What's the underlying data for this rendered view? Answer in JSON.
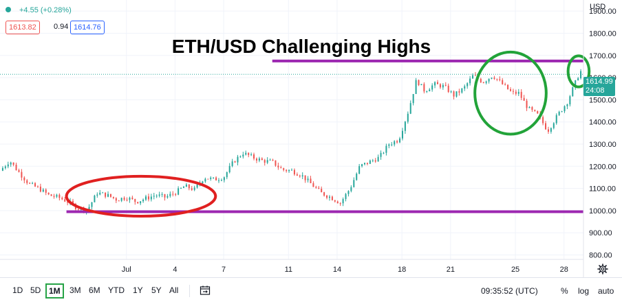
{
  "chart_data": {
    "type": "candlestick",
    "title": "ETH/USD Challenging Highs",
    "currency_label": "USD",
    "ylim": [
      780,
      1950
    ],
    "y_ticks": [
      "1900.00",
      "1800.00",
      "1700.00",
      "1600.00",
      "1500.00",
      "1400.00",
      "1300.00",
      "1200.00",
      "1100.00",
      "1000.00",
      "900.00",
      "800.00"
    ],
    "y_tick_values": [
      1900,
      1800,
      1700,
      1600,
      1500,
      1400,
      1300,
      1200,
      1100,
      1000,
      900,
      800
    ],
    "x_ticks": [
      "Jul",
      "4",
      "7",
      "11",
      "14",
      "18",
      "21",
      "25",
      "28"
    ],
    "x_tick_days": [
      1,
      4,
      7,
      11,
      14,
      18,
      21,
      25,
      28
    ],
    "x_range_days": [
      -6.8,
      29.2
    ],
    "close_path": [
      [
        -6.8,
        1180
      ],
      [
        -6.2,
        1225
      ],
      [
        -5.6,
        1170
      ],
      [
        -5.0,
        1120
      ],
      [
        -4.4,
        1100
      ],
      [
        -3.8,
        1070
      ],
      [
        -3.2,
        1060
      ],
      [
        -2.6,
        1040
      ],
      [
        -2.0,
        1010
      ],
      [
        -1.4,
        1005
      ],
      [
        -0.8,
        1080
      ],
      [
        -0.2,
        1070
      ],
      [
        0.4,
        1050
      ],
      [
        1.0,
        1060
      ],
      [
        1.6,
        1040
      ],
      [
        2.2,
        1055
      ],
      [
        2.8,
        1070
      ],
      [
        3.4,
        1060
      ],
      [
        4.0,
        1080
      ],
      [
        4.6,
        1110
      ],
      [
        5.2,
        1095
      ],
      [
        5.8,
        1150
      ],
      [
        6.4,
        1140
      ],
      [
        7.0,
        1150
      ],
      [
        7.6,
        1220
      ],
      [
        8.2,
        1260
      ],
      [
        8.8,
        1240
      ],
      [
        9.4,
        1225
      ],
      [
        10.0,
        1220
      ],
      [
        10.6,
        1185
      ],
      [
        11.2,
        1180
      ],
      [
        11.8,
        1160
      ],
      [
        12.4,
        1120
      ],
      [
        13.0,
        1080
      ],
      [
        13.6,
        1060
      ],
      [
        14.2,
        1035
      ],
      [
        14.8,
        1100
      ],
      [
        15.4,
        1200
      ],
      [
        16.0,
        1220
      ],
      [
        16.6,
        1240
      ],
      [
        17.2,
        1300
      ],
      [
        17.8,
        1320
      ],
      [
        18.4,
        1450
      ],
      [
        18.9,
        1590
      ],
      [
        19.4,
        1540
      ],
      [
        20.0,
        1570
      ],
      [
        20.6,
        1560
      ],
      [
        21.2,
        1520
      ],
      [
        21.8,
        1550
      ],
      [
        22.4,
        1610
      ],
      [
        23.0,
        1580
      ],
      [
        23.6,
        1610
      ],
      [
        24.2,
        1570
      ],
      [
        24.8,
        1530
      ],
      [
        25.2,
        1530
      ],
      [
        25.8,
        1460
      ],
      [
        26.4,
        1430
      ],
      [
        27.0,
        1360
      ],
      [
        27.6,
        1430
      ],
      [
        28.2,
        1490
      ],
      [
        28.6,
        1560
      ],
      [
        29.0,
        1630
      ],
      [
        29.2,
        1615
      ]
    ],
    "resistance_line": {
      "y": 1675,
      "x_from": 10.0,
      "x_to": 29.2
    },
    "support_line": {
      "y": 995,
      "x_from": -2.7,
      "x_to": 29.2
    },
    "ellipses": [
      {
        "color": "#e02020",
        "cx": 1.9,
        "cy": 1065,
        "rx_days": 4.6,
        "ry_value": 90
      },
      {
        "color": "#22a339",
        "cx": 24.7,
        "cy": 1530,
        "rx_days": 2.2,
        "ry_value": 185
      },
      {
        "color": "#22a339",
        "cx": 28.9,
        "cy": 1628,
        "rx_days": 0.65,
        "ry_value": 70
      }
    ],
    "last_price": "1614.99",
    "countdown": "24:08",
    "last_price_value": 1614.99,
    "up_color": "#26a69a",
    "down_color": "#ef5350",
    "line_color": "#9c27b0"
  },
  "legend": {
    "change": "+4.55 (+0.28%)",
    "bid": "1613.82",
    "spread": "0.94",
    "ask": "1614.76"
  },
  "toolbar": {
    "timeframes": [
      "1D",
      "5D",
      "1M",
      "3M",
      "6M",
      "YTD",
      "1Y",
      "5Y",
      "All"
    ],
    "active_timeframe": "1M",
    "time": "09:35:52 (UTC)",
    "percent_label": "%",
    "log_label": "log",
    "auto_label": "auto"
  },
  "icons": {
    "calendar": "calendar-range-icon",
    "settings": "gear-icon"
  }
}
